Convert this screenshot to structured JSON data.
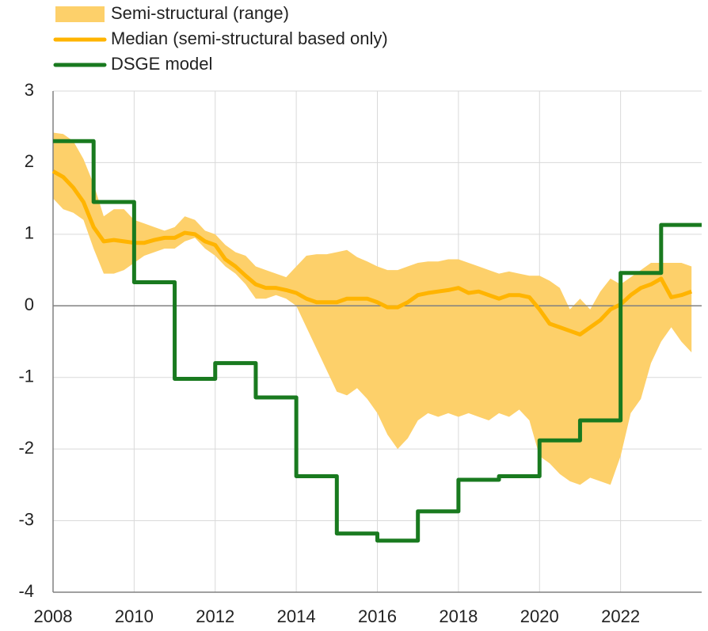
{
  "chart_data": {
    "type": "line",
    "xlim": [
      2008,
      2024
    ],
    "xticks": [
      2008,
      2010,
      2012,
      2014,
      2016,
      2018,
      2020,
      2022
    ],
    "ylim": [
      -4,
      3
    ],
    "yticks": [
      -4,
      -3,
      -2,
      -1,
      0,
      1,
      2,
      3
    ],
    "grid": true,
    "legend": "top-left",
    "series": [
      {
        "name": "Semi-structural (range)",
        "kind": "band",
        "color": "#fdd06a",
        "x": [
          2008,
          2008.25,
          2008.5,
          2008.75,
          2009,
          2009.25,
          2009.5,
          2009.75,
          2010,
          2010.25,
          2010.5,
          2010.75,
          2011,
          2011.25,
          2011.5,
          2011.75,
          2012,
          2012.25,
          2012.5,
          2012.75,
          2013,
          2013.25,
          2013.5,
          2013.75,
          2014,
          2014.25,
          2014.5,
          2014.75,
          2015,
          2015.25,
          2015.5,
          2015.75,
          2016,
          2016.25,
          2016.5,
          2016.75,
          2017,
          2017.25,
          2017.5,
          2017.75,
          2018,
          2018.25,
          2018.5,
          2018.75,
          2019,
          2019.25,
          2019.5,
          2019.75,
          2020,
          2020.25,
          2020.5,
          2020.75,
          2021,
          2021.25,
          2021.5,
          2021.75,
          2022,
          2022.25,
          2022.5,
          2022.75,
          2023,
          2023.25,
          2023.5,
          2023.75
        ],
        "upper": [
          2.42,
          2.4,
          2.3,
          2.05,
          1.7,
          1.25,
          1.35,
          1.35,
          1.2,
          1.15,
          1.1,
          1.05,
          1.1,
          1.25,
          1.2,
          1.05,
          1.0,
          0.85,
          0.75,
          0.7,
          0.55,
          0.5,
          0.45,
          0.4,
          0.55,
          0.7,
          0.72,
          0.72,
          0.75,
          0.78,
          0.68,
          0.62,
          0.55,
          0.5,
          0.5,
          0.55,
          0.6,
          0.62,
          0.62,
          0.65,
          0.65,
          0.6,
          0.55,
          0.5,
          0.45,
          0.48,
          0.45,
          0.42,
          0.42,
          0.35,
          0.25,
          -0.05,
          0.1,
          -0.05,
          0.2,
          0.38,
          0.3,
          0.4,
          0.5,
          0.6,
          0.6,
          0.6,
          0.6,
          0.55
        ],
        "lower": [
          1.5,
          1.35,
          1.3,
          1.2,
          0.8,
          0.45,
          0.45,
          0.5,
          0.6,
          0.7,
          0.75,
          0.8,
          0.8,
          0.9,
          0.95,
          0.8,
          0.7,
          0.55,
          0.45,
          0.3,
          0.1,
          0.1,
          0.15,
          0.1,
          0.0,
          -0.3,
          -0.6,
          -0.9,
          -1.2,
          -1.25,
          -1.15,
          -1.3,
          -1.5,
          -1.8,
          -2.0,
          -1.85,
          -1.6,
          -1.5,
          -1.55,
          -1.5,
          -1.55,
          -1.5,
          -1.55,
          -1.6,
          -1.5,
          -1.55,
          -1.45,
          -1.6,
          -2.1,
          -2.2,
          -2.35,
          -2.45,
          -2.5,
          -2.4,
          -2.45,
          -2.5,
          -2.1,
          -1.5,
          -1.3,
          -0.8,
          -0.5,
          -0.3,
          -0.5,
          -0.65
        ]
      },
      {
        "name": "Median (semi-structural based only)",
        "kind": "line",
        "color": "#ffb400",
        "x": [
          2008,
          2008.25,
          2008.5,
          2008.75,
          2009,
          2009.25,
          2009.5,
          2009.75,
          2010,
          2010.25,
          2010.5,
          2010.75,
          2011,
          2011.25,
          2011.5,
          2011.75,
          2012,
          2012.25,
          2012.5,
          2012.75,
          2013,
          2013.25,
          2013.5,
          2013.75,
          2014,
          2014.25,
          2014.5,
          2014.75,
          2015,
          2015.25,
          2015.5,
          2015.75,
          2016,
          2016.25,
          2016.5,
          2016.75,
          2017,
          2017.25,
          2017.5,
          2017.75,
          2018,
          2018.25,
          2018.5,
          2018.75,
          2019,
          2019.25,
          2019.5,
          2019.75,
          2020,
          2020.25,
          2020.5,
          2020.75,
          2021,
          2021.25,
          2021.5,
          2021.75,
          2022,
          2022.25,
          2022.5,
          2022.75,
          2023,
          2023.25,
          2023.5,
          2023.75
        ],
        "values": [
          1.88,
          1.8,
          1.65,
          1.45,
          1.1,
          0.9,
          0.92,
          0.9,
          0.88,
          0.88,
          0.92,
          0.95,
          0.95,
          1.02,
          1.0,
          0.9,
          0.85,
          0.65,
          0.55,
          0.42,
          0.3,
          0.25,
          0.25,
          0.22,
          0.18,
          0.1,
          0.05,
          0.05,
          0.05,
          0.1,
          0.1,
          0.1,
          0.05,
          -0.02,
          -0.02,
          0.05,
          0.15,
          0.18,
          0.2,
          0.22,
          0.25,
          0.18,
          0.2,
          0.15,
          0.1,
          0.15,
          0.15,
          0.12,
          -0.05,
          -0.25,
          -0.3,
          -0.35,
          -0.4,
          -0.3,
          -0.2,
          -0.05,
          0.02,
          0.15,
          0.25,
          0.3,
          0.38,
          0.12,
          0.15,
          0.2
        ]
      },
      {
        "name": "DSGE model",
        "kind": "line",
        "color": "#197a1f",
        "x": [
          2008,
          2009,
          2009,
          2010,
          2010,
          2011,
          2011,
          2012,
          2012,
          2013,
          2013,
          2014,
          2014,
          2015,
          2015,
          2016,
          2016,
          2017,
          2017,
          2018,
          2018,
          2019,
          2019,
          2020,
          2020,
          2021,
          2021,
          2022,
          2022,
          2023,
          2023,
          2024
        ],
        "values": [
          2.3,
          2.3,
          1.45,
          1.45,
          0.33,
          0.33,
          -1.02,
          -1.02,
          -0.8,
          -0.8,
          -1.28,
          -1.28,
          -2.38,
          -2.38,
          -3.18,
          -3.18,
          -3.28,
          -3.28,
          -2.87,
          -2.87,
          -2.43,
          -2.43,
          -2.38,
          -2.38,
          -1.88,
          -1.88,
          -1.6,
          -1.6,
          0.46,
          0.46,
          1.13,
          1.13
        ]
      }
    ]
  }
}
